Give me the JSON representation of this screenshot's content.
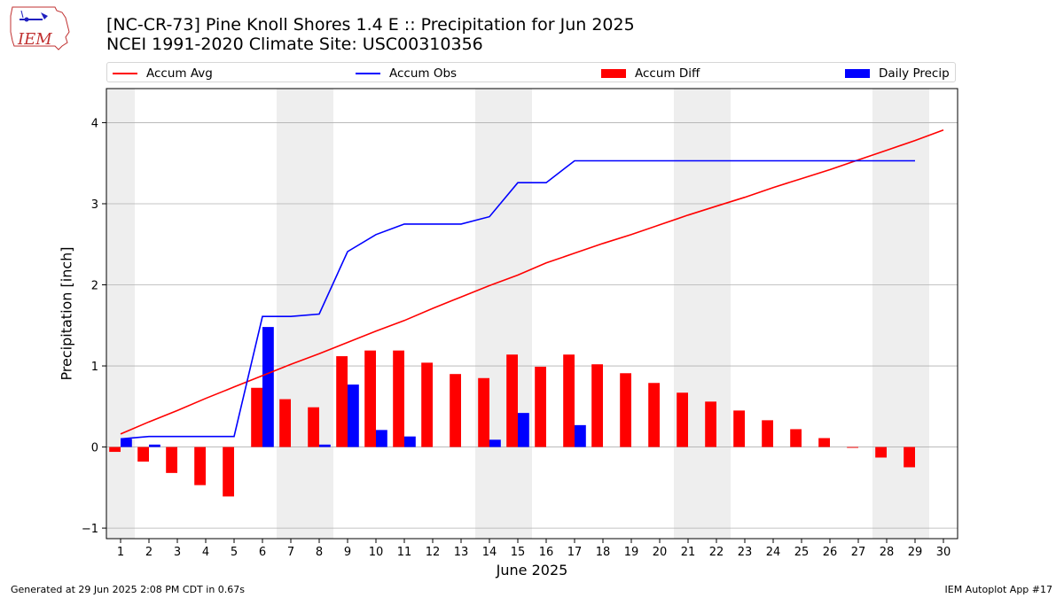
{
  "chart_data": {
    "type": "bar",
    "title": "[NC-CR-73] Pine Knoll Shores 1.4 E :: Precipitation for Jun 2025",
    "subtitle": "NCEI 1991-2020 Climate Site: USC00310356",
    "xlabel": "June 2025",
    "ylabel": "Precipitation [inch]",
    "xlim": [
      0.5,
      30.5
    ],
    "ylim": [
      -1.13,
      4.42
    ],
    "yticks": [
      -1,
      0,
      1,
      2,
      3,
      4
    ],
    "x": [
      1,
      2,
      3,
      4,
      5,
      6,
      7,
      8,
      9,
      10,
      11,
      12,
      13,
      14,
      15,
      16,
      17,
      18,
      19,
      20,
      21,
      22,
      23,
      24,
      25,
      26,
      27,
      28,
      29,
      30
    ],
    "x_tick_labels": [
      "1",
      "2",
      "3",
      "4",
      "5",
      "6",
      "7",
      "8",
      "9",
      "10",
      "11",
      "12",
      "13",
      "14",
      "15",
      "16",
      "17",
      "18",
      "19",
      "20",
      "21",
      "22",
      "23",
      "24",
      "25",
      "26",
      "27",
      "28",
      "29",
      "30"
    ],
    "weekend_days": [
      1,
      7,
      8,
      14,
      15,
      21,
      22,
      28,
      29
    ],
    "grid": true,
    "legend_position": "top",
    "series": [
      {
        "name": "Accum Avg",
        "type": "line",
        "color": "#ff0000",
        "values": [
          0.16,
          0.31,
          0.45,
          0.6,
          0.74,
          0.88,
          1.02,
          1.15,
          1.29,
          1.43,
          1.56,
          1.71,
          1.85,
          1.99,
          2.12,
          2.27,
          2.39,
          2.51,
          2.62,
          2.74,
          2.86,
          2.97,
          3.08,
          3.2,
          3.31,
          3.42,
          3.54,
          3.66,
          3.78,
          3.91
        ]
      },
      {
        "name": "Accum Obs",
        "type": "line",
        "color": "#0000ff",
        "values": [
          0.1,
          0.13,
          0.13,
          0.13,
          0.13,
          1.61,
          1.61,
          1.64,
          2.41,
          2.62,
          2.75,
          2.75,
          2.75,
          2.84,
          3.26,
          3.26,
          3.53,
          3.53,
          3.53,
          3.53,
          3.53,
          3.53,
          3.53,
          3.53,
          3.53,
          3.53,
          3.53,
          3.53,
          3.53,
          null
        ]
      },
      {
        "name": "Accum Diff",
        "type": "bar",
        "color": "#ff0000",
        "values": [
          -0.06,
          -0.18,
          -0.32,
          -0.47,
          -0.61,
          0.73,
          0.59,
          0.49,
          1.12,
          1.19,
          1.19,
          1.04,
          0.9,
          0.85,
          1.14,
          0.99,
          1.14,
          1.02,
          0.91,
          0.79,
          0.67,
          0.56,
          0.45,
          0.33,
          0.22,
          0.11,
          -0.01,
          -0.13,
          -0.25,
          null
        ]
      },
      {
        "name": "Daily Precip",
        "type": "bar",
        "color": "#0000ff",
        "values": [
          0.1,
          0.03,
          0.0,
          0.0,
          0.0,
          1.48,
          0.0,
          0.03,
          0.77,
          0.21,
          0.13,
          0.0,
          0.0,
          0.09,
          0.42,
          0.0,
          0.27,
          0.0,
          0.0,
          0.0,
          0.0,
          0.0,
          0.0,
          0.0,
          0.0,
          0.0,
          0.0,
          0.0,
          0.0,
          null
        ]
      }
    ]
  },
  "logo": {
    "text": "IEM"
  },
  "footer": {
    "left": "Generated at 29 Jun 2025 2:08 PM CDT in 0.67s",
    "right": "IEM Autoplot App #17"
  },
  "colors": {
    "weekend_band": "#eeeeee",
    "grid": "#b0b0b0"
  }
}
